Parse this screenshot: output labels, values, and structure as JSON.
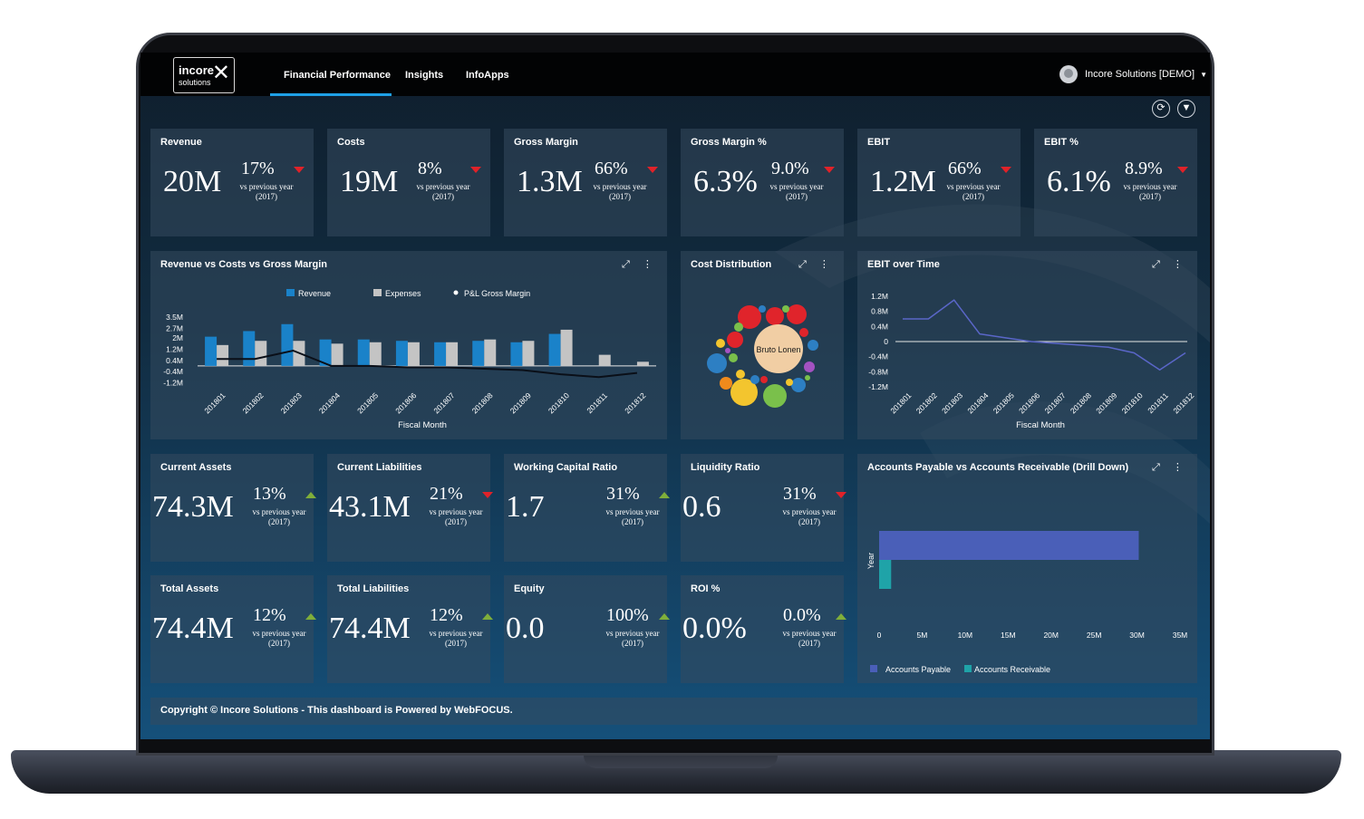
{
  "header": {
    "logo_text_1": "incore",
    "logo_text_2": "solutions",
    "tabs": [
      "Financial Performance",
      "Insights",
      "InfoApps"
    ],
    "active_tab": "Financial Performance",
    "user_label": "Incore Solutions [DEMO]"
  },
  "toolbar": {
    "refresh_icon": "refresh-icon",
    "filter_icon": "filter-icon"
  },
  "kpis_top": [
    {
      "title": "Revenue",
      "value": "20M",
      "pct": "17%",
      "trend": "down",
      "vs": "vs previous year",
      "year": "(2017)"
    },
    {
      "title": "Costs",
      "value": "19M",
      "pct": "8%",
      "trend": "down",
      "vs": "vs previous year",
      "year": "(2017)"
    },
    {
      "title": "Gross Margin",
      "value": "1.3M",
      "pct": "66%",
      "trend": "down",
      "vs": "vs previous year",
      "year": "(2017)"
    },
    {
      "title": "Gross Margin %",
      "value": "6.3%",
      "pct": "9.0%",
      "trend": "down",
      "vs": "vs previous year",
      "year": "(2017)"
    },
    {
      "title": "EBIT",
      "value": "1.2M",
      "pct": "66%",
      "trend": "down",
      "vs": "vs previous year",
      "year": "(2017)"
    },
    {
      "title": "EBIT %",
      "value": "6.1%",
      "pct": "8.9%",
      "trend": "down",
      "vs": "vs previous year",
      "year": "(2017)"
    }
  ],
  "kpis_mid": [
    {
      "title": "Current Assets",
      "value": "74.3M",
      "pct": "13%",
      "trend": "up",
      "vs": "vs previous year",
      "year": "(2017)"
    },
    {
      "title": "Current Liabilities",
      "value": "43.1M",
      "pct": "21%",
      "trend": "down",
      "vs": "vs previous year",
      "year": "(2017)"
    },
    {
      "title": "Working Capital Ratio",
      "value": "1.7",
      "pct": "31%",
      "trend": "up",
      "vs": "vs previous year",
      "year": "(2017)"
    },
    {
      "title": "Liquidity Ratio",
      "value": "0.6",
      "pct": "31%",
      "trend": "down",
      "vs": "vs previous year",
      "year": "(2017)"
    }
  ],
  "kpis_bottom": [
    {
      "title": "Total Assets",
      "value": "74.4M",
      "pct": "12%",
      "trend": "up",
      "vs": "vs previous year",
      "year": "(2017)"
    },
    {
      "title": "Total Liabilities",
      "value": "74.4M",
      "pct": "12%",
      "trend": "up",
      "vs": "vs previous year",
      "year": "(2017)"
    },
    {
      "title": "Equity",
      "value": "0.0",
      "pct": "100%",
      "trend": "up",
      "vs": "vs previous year",
      "year": "(2017)"
    },
    {
      "title": "ROI %",
      "value": "0.0%",
      "pct": "0.0%",
      "trend": "up",
      "vs": "vs previous year",
      "year": "(2017)"
    }
  ],
  "colors": {
    "down": "#e02229",
    "up": "#7fae3a",
    "revenue": "#1a82c9",
    "expenses": "#c4c4c4",
    "accent": "#1ea0e6"
  },
  "footer": {
    "text": "Copyright © Incore Solutions - This dashboard is Powered by WebFOCUS."
  },
  "chart_data": [
    {
      "id": "rev_costs",
      "type": "bar",
      "title": "Revenue vs Costs vs Gross Margin",
      "xlabel": "Fiscal Month",
      "ylabel": "",
      "categories": [
        "201801",
        "201802",
        "201803",
        "201804",
        "201805",
        "201806",
        "201807",
        "201808",
        "201809",
        "201810",
        "201811",
        "201812"
      ],
      "yticks": [
        "3.5M",
        "2.7M",
        "2M",
        "1.2M",
        "0.4M",
        "-0.4M",
        "-1.2M"
      ],
      "ylim": [
        -1.5,
        3.7
      ],
      "series": [
        {
          "name": "Revenue",
          "values": [
            2.1,
            2.5,
            3.0,
            1.9,
            1.9,
            1.8,
            1.7,
            1.8,
            1.7,
            2.3,
            0,
            0
          ],
          "color": "#1a82c9"
        },
        {
          "name": "Expenses",
          "values": [
            1.5,
            1.8,
            1.8,
            1.6,
            1.7,
            1.7,
            1.7,
            1.9,
            1.8,
            2.6,
            0.8,
            0.3
          ],
          "color": "#c4c4c4"
        },
        {
          "name": "P&L Gross Margin",
          "type": "line",
          "values": [
            0.5,
            0.5,
            1.1,
            0.0,
            0.0,
            -0.1,
            -0.1,
            -0.2,
            -0.3,
            -0.6,
            -0.8,
            -0.5
          ],
          "color": "#0a0f18"
        }
      ],
      "legend": "top"
    },
    {
      "id": "cost_dist",
      "type": "bubble",
      "title": "Cost Distribution",
      "label": "Bruto Lonen"
    },
    {
      "id": "ebit_time",
      "type": "line",
      "title": "EBIT over Time",
      "xlabel": "Fiscal Month",
      "categories": [
        "201801",
        "201802",
        "201803",
        "201804",
        "201805",
        "201806",
        "201807",
        "201808",
        "201809",
        "201810",
        "201811",
        "201812"
      ],
      "yticks": [
        "1.2M",
        "0.8M",
        "0.4M",
        "0",
        "-0.4M",
        "-0.8M",
        "-1.2M"
      ],
      "ylim": [
        -1.2,
        1.2
      ],
      "series": [
        {
          "name": "EBIT",
          "values": [
            0.6,
            0.6,
            1.1,
            0.2,
            0.1,
            0.0,
            -0.05,
            -0.1,
            -0.15,
            -0.3,
            -0.75,
            -0.3
          ],
          "color": "#5a66c8"
        }
      ]
    },
    {
      "id": "ap_ar",
      "type": "bar",
      "orientation": "horizontal",
      "title": "Accounts Payable vs Accounts Receivable (Drill Down)",
      "ylabel": "Year",
      "xticks": [
        "0",
        "5M",
        "10M",
        "15M",
        "20M",
        "25M",
        "30M",
        "35M"
      ],
      "xlim": [
        0,
        35
      ],
      "series": [
        {
          "name": "Accounts Payable",
          "values": [
            30.2
          ],
          "color": "#4a5fb8"
        },
        {
          "name": "Accounts Receivable",
          "values": [
            1.4
          ],
          "color": "#1fa3a8"
        }
      ],
      "legend": "bottom"
    }
  ]
}
